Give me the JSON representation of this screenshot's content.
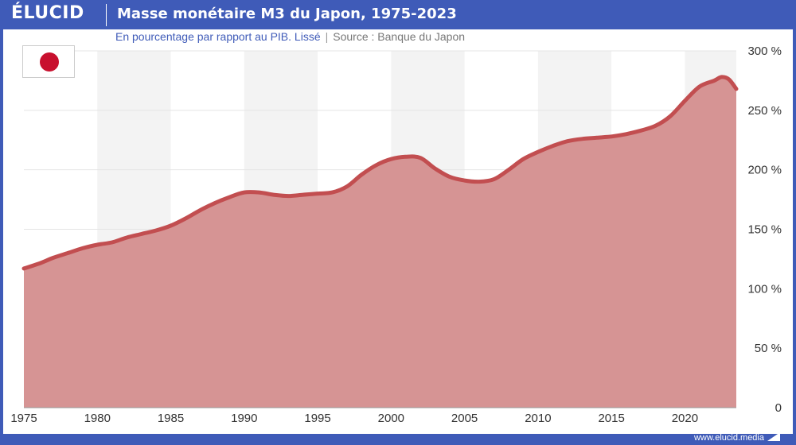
{
  "header": {
    "brand": "ÉLUCID",
    "title": "Masse monétaire M3 du Japon, 1975-2023"
  },
  "subtitle": "En pourcentage par rapport au PIB. Lissé",
  "separator": "|",
  "source": "Source : Banque du Japon",
  "footer": {
    "site": "www.elucid.media"
  },
  "colors": {
    "brand_blue": "#3f5bb8",
    "area_fill": "#d69494",
    "line": "#c24e50",
    "band": "#f3f3f3",
    "flag_red": "#c8102e"
  },
  "flag_icon": "japan-flag-icon",
  "chart_data": {
    "type": "area",
    "title": "Masse monétaire M3 du Japon, 1975-2023",
    "subtitle": "En pourcentage par rapport au PIB. Lissé",
    "xlabel": "",
    "ylabel": "",
    "xlim": [
      1975,
      2023.5
    ],
    "ylim": [
      0,
      300
    ],
    "y_axis_position": "right",
    "grid": true,
    "x_ticks": [
      1975,
      1980,
      1985,
      1990,
      1995,
      2000,
      2005,
      2010,
      2015,
      2020
    ],
    "x_tick_labels": [
      "1975",
      "1980",
      "1985",
      "1990",
      "1995",
      "2000",
      "2005",
      "2010",
      "2015",
      "2020"
    ],
    "y_ticks": [
      0,
      50,
      100,
      150,
      200,
      250,
      300
    ],
    "y_tick_labels": [
      "0",
      "50 %",
      "100 %",
      "150 %",
      "200 %",
      "250 %",
      "300 %"
    ],
    "series": [
      {
        "x": [
          1975,
          1976,
          1977,
          1978,
          1979,
          1980,
          1981,
          1982,
          1983,
          1984,
          1985,
          1986,
          1987,
          1988,
          1989,
          1990,
          1991,
          1992,
          1993,
          1994,
          1995,
          1996,
          1997,
          1998,
          1999,
          2000,
          2001,
          2002,
          2003,
          2004,
          2005,
          2006,
          2007,
          2008,
          2009,
          2010,
          2011,
          2012,
          2013,
          2014,
          2015,
          2016,
          2017,
          2018,
          2019,
          2020,
          2021,
          2022,
          2022.5,
          2023,
          2023.5
        ],
        "values": [
          117,
          121,
          126,
          130,
          134,
          137,
          139,
          143,
          146,
          149,
          153,
          159,
          166,
          172,
          177,
          181,
          181,
          179,
          178,
          179,
          180,
          181,
          186,
          196,
          204,
          209,
          211,
          210,
          201,
          194,
          191,
          190,
          192,
          200,
          209,
          215,
          220,
          224,
          226,
          227,
          228,
          230,
          233,
          237,
          245,
          258,
          270,
          275,
          278,
          276,
          268
        ]
      }
    ]
  }
}
